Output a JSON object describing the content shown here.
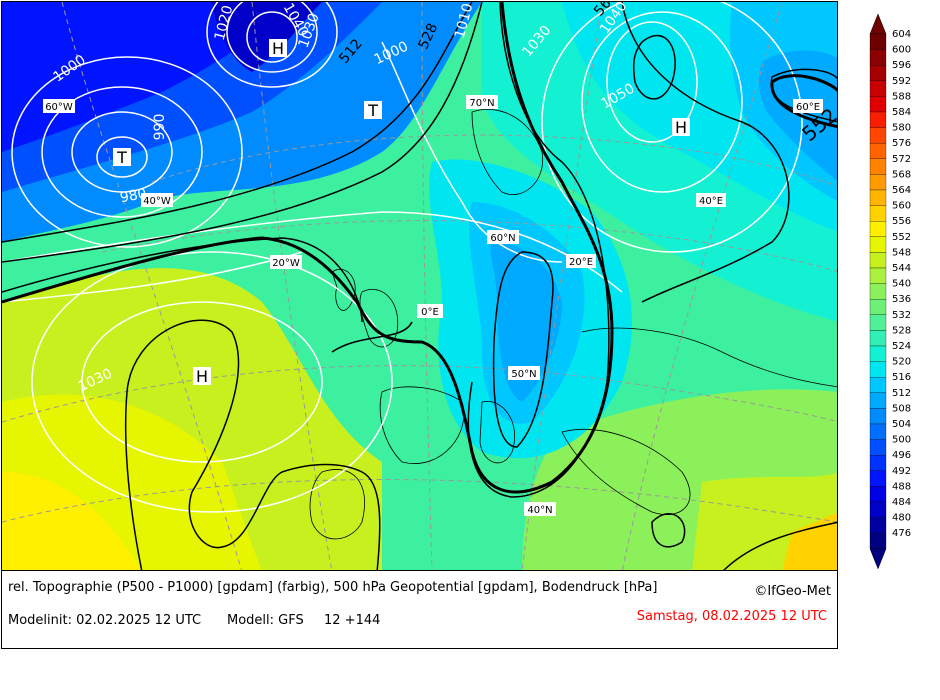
{
  "caption": {
    "line1": "rel. Topographie (P500 - P1000) [gpdam] (farbig), 500 hPa Geopotential [gpdam], Bodendruck [hPa]",
    "copyright": "©IfGeo-Met",
    "modelinit": "Modelinit: 02.02.2025 12 UTC",
    "model": "Modell: GFS",
    "run": "12 +144",
    "valid": "Samstag, 08.02.2025 12 UTC"
  },
  "colorbar": {
    "levels": [
      "604",
      "600",
      "596",
      "592",
      "588",
      "584",
      "580",
      "576",
      "572",
      "568",
      "564",
      "560",
      "556",
      "552",
      "548",
      "544",
      "540",
      "536",
      "532",
      "528",
      "524",
      "520",
      "516",
      "512",
      "508",
      "504",
      "500",
      "496",
      "492",
      "488",
      "484",
      "480",
      "476"
    ],
    "colors": [
      "#6e0000",
      "#8b0000",
      "#a50000",
      "#c80000",
      "#e10000",
      "#f81e00",
      "#ff4600",
      "#ff6400",
      "#ff8200",
      "#ff9b00",
      "#ffb400",
      "#ffd200",
      "#fff000",
      "#e6f500",
      "#c8f01e",
      "#aaf03c",
      "#8cf05a",
      "#6ef078",
      "#50f096",
      "#32f0b4",
      "#14f0d2",
      "#00e6f0",
      "#00c8ff",
      "#00aaff",
      "#008cff",
      "#006eff",
      "#0050ff",
      "#0032ff",
      "#0014ff",
      "#0000e6",
      "#0000c8",
      "#0000a0",
      "#000080"
    ]
  },
  "map_labels": {
    "lat_lon": [
      "60°W",
      "40°W",
      "20°W",
      "0°E",
      "20°E",
      "40°E",
      "60°E",
      "70°N",
      "60°N",
      "50°N",
      "40°N"
    ],
    "pressure_systems": [
      "T",
      "H",
      "T",
      "T",
      "H",
      "H"
    ],
    "isobar_values": [
      "1000",
      "1020",
      "1040",
      "1030",
      "1010",
      "1030",
      "1040",
      "1050",
      "1000",
      "990",
      "980",
      "1030"
    ],
    "geopotential_values": [
      "528",
      "512",
      "552",
      "56"
    ]
  }
}
